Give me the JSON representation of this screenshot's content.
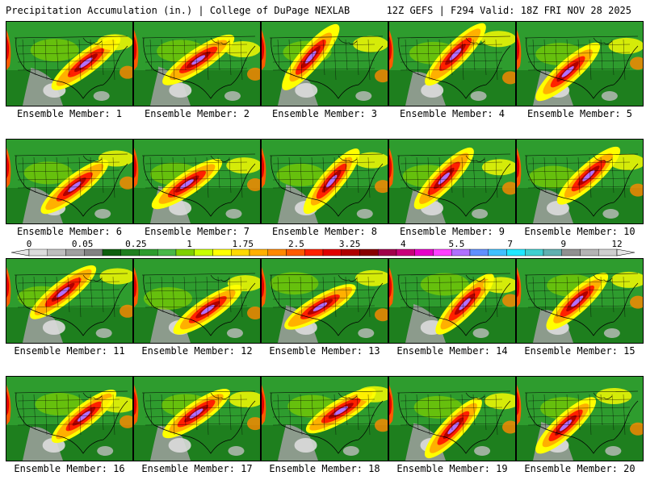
{
  "header": {
    "title": "Precipitation Accumulation (in.) | College of DuPage NEXLAB",
    "run_info": "12Z GEFS | F294 Valid: 18Z FRI NOV 28 2025"
  },
  "members": [
    {
      "label": "Ensemble Member: 1"
    },
    {
      "label": "Ensemble Member: 2"
    },
    {
      "label": "Ensemble Member: 3"
    },
    {
      "label": "Ensemble Member: 4"
    },
    {
      "label": "Ensemble Member: 5"
    },
    {
      "label": "Ensemble Member: 6"
    },
    {
      "label": "Ensemble Member: 7"
    },
    {
      "label": "Ensemble Member: 8"
    },
    {
      "label": "Ensemble Member: 9"
    },
    {
      "label": "Ensemble Member: 10"
    },
    {
      "label": "Ensemble Member: 11"
    },
    {
      "label": "Ensemble Member: 12"
    },
    {
      "label": "Ensemble Member: 13"
    },
    {
      "label": "Ensemble Member: 14"
    },
    {
      "label": "Ensemble Member: 15"
    },
    {
      "label": "Ensemble Member: 16"
    },
    {
      "label": "Ensemble Member: 17"
    },
    {
      "label": "Ensemble Member: 18"
    },
    {
      "label": "Ensemble Member: 19"
    },
    {
      "label": "Ensemble Member: 20"
    }
  ],
  "colorbar": {
    "ticks": [
      "0",
      "0.05",
      "0.25",
      "1",
      "1.75",
      "2.5",
      "3.25",
      "4",
      "5.5",
      "7",
      "9",
      "12"
    ],
    "colors": [
      "#dcdcdc",
      "#bebebe",
      "#a0a0a0",
      "#828282",
      "#0e5f0e",
      "#1e7f1e",
      "#2e9c2e",
      "#48b848",
      "#7fd000",
      "#c8ff00",
      "#ffff00",
      "#ffd800",
      "#ffb000",
      "#ff8800",
      "#ff5a00",
      "#ff2000",
      "#e00000",
      "#b00000",
      "#880000",
      "#a0004a",
      "#c8007a",
      "#e600c8",
      "#ff40ff",
      "#b070ff",
      "#6090ff",
      "#40c0ff",
      "#20e8ff",
      "#40d0d0",
      "#60b0b0",
      "#909090",
      "#b4b4b4",
      "#d0d0d0"
    ]
  }
}
